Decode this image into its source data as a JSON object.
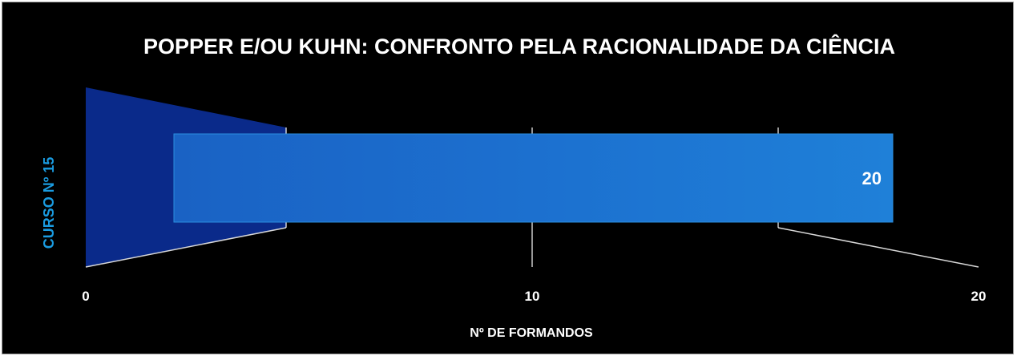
{
  "chart_data": {
    "type": "bar",
    "orientation": "horizontal",
    "title": "POPPER E/OU KUHN: CONFRONTO PELA RACIONALIDADE DA CIÊNCIA",
    "categories": [
      "CURSO Nº 15"
    ],
    "values": [
      20
    ],
    "data_labels": [
      "20"
    ],
    "xlabel": "Nº DE FORMANDOS",
    "ylabel": "",
    "xlim": [
      0,
      20
    ],
    "x_ticks": [
      "0",
      "10",
      "20"
    ],
    "grid": true,
    "legend": "none",
    "style": "3d-perspective",
    "colors": {
      "background": "#000000",
      "bar": "#1f7ad0",
      "side_wall": "#0a2a8a",
      "category_label": "#1a9be0",
      "text": "#ffffff",
      "grid": "#ffffff"
    }
  }
}
